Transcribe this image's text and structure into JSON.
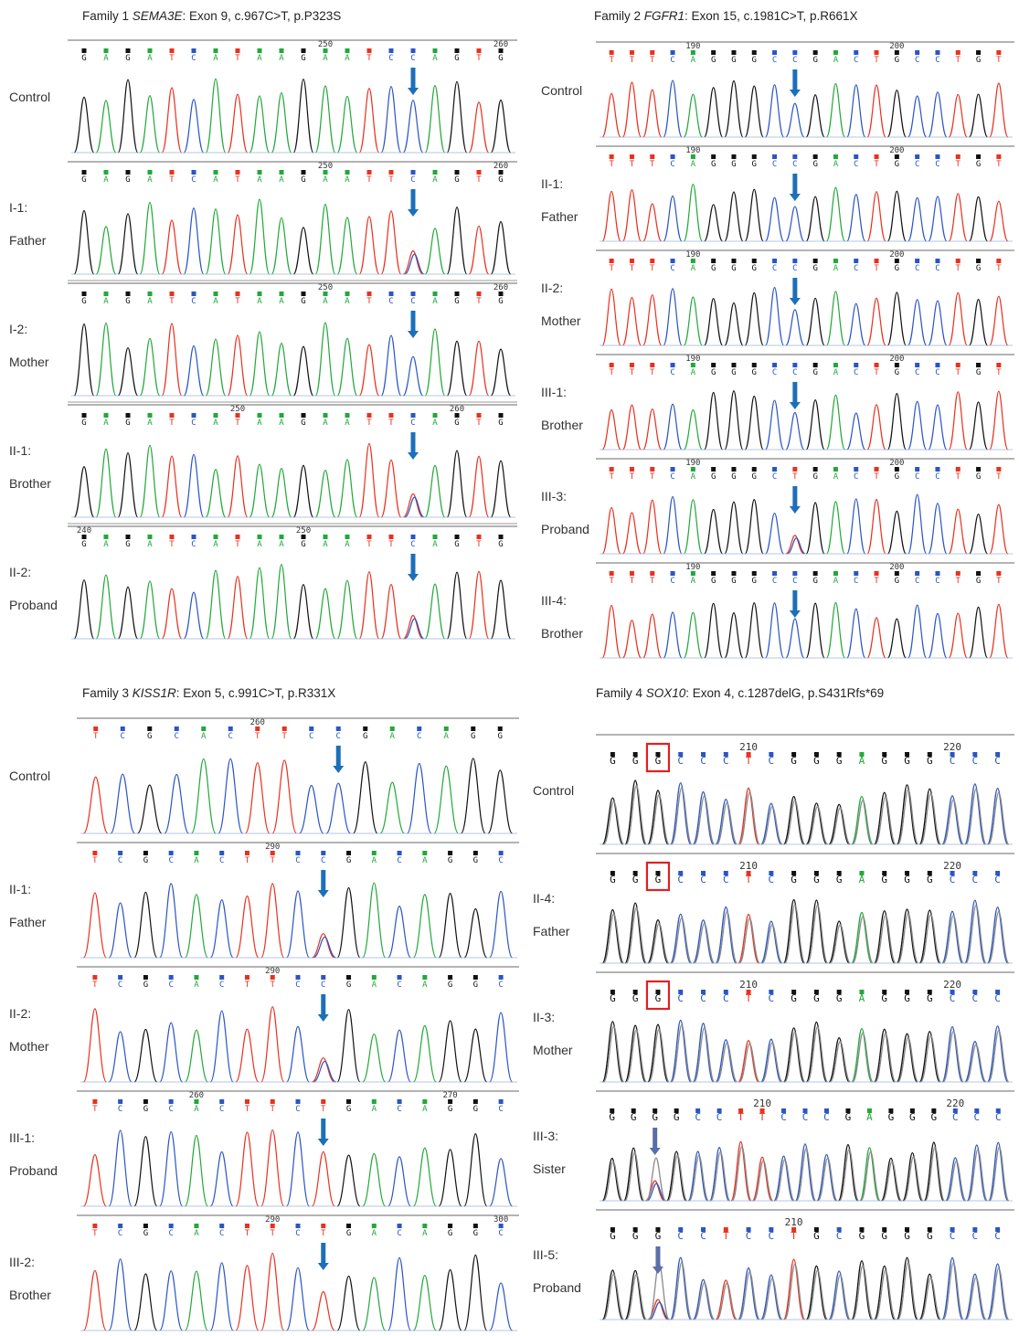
{
  "colors": {
    "A": "#22a83a",
    "C": "#2a55c4",
    "G": "#111111",
    "T": "#e8311f",
    "arrow": "#1d6fb8",
    "box": "#e02020",
    "axis": "#9a9a9a"
  },
  "panels": [
    {
      "id": "family1",
      "title_prefix": "Family 1 ",
      "gene": "SEMA3E",
      "title_suffix": ": Exon 9, c.967C>T, p.P323S",
      "tracks": [
        {
          "label1": "Control",
          "label2": "",
          "bases": "GAGATCATAAGAATCCAGTG",
          "pos_marks": [
            {
              "i": 11,
              "n": "250"
            },
            {
              "i": 19,
              "n": "260"
            }
          ],
          "arrow_at": 15,
          "het_at": null
        },
        {
          "label1": "I-1:",
          "label2": "Father",
          "bases": "GAGATCATAAGAATTCAGTG",
          "pos_marks": [
            {
              "i": 11,
              "n": "250"
            },
            {
              "i": 19,
              "n": "260"
            }
          ],
          "arrow_at": 15,
          "het_at": 15
        },
        {
          "label1": "I-2:",
          "label2": "Mother",
          "bases": "GAGATCATAAGAATCCAGTG",
          "pos_marks": [
            {
              "i": 11,
              "n": "250"
            },
            {
              "i": 19,
              "n": "260"
            }
          ],
          "arrow_at": 15,
          "het_at": null
        },
        {
          "label1": "II-1:",
          "label2": "Brother",
          "bases": "GAGATCATAAGAATTCAGTG",
          "pos_marks": [
            {
              "i": 7,
              "n": "250"
            },
            {
              "i": 17,
              "n": "260"
            }
          ],
          "arrow_at": 15,
          "het_at": 15
        },
        {
          "label1": "II-2:",
          "label2": "Proband",
          "bases": "GAGATCATAAGAATTCAGTG",
          "pos_marks": [
            {
              "i": 0,
              "n": "240"
            },
            {
              "i": 10,
              "n": "250"
            }
          ],
          "arrow_at": 15,
          "het_at": 15
        }
      ]
    },
    {
      "id": "family2",
      "title_prefix": "Family 2 ",
      "gene": "FGFR1",
      "title_suffix": ": Exon 15, c.1981C>T, p.R661X",
      "tracks": [
        {
          "label1": "Control",
          "label2": "",
          "bases": "TTTCAGGGCCGACTGCCTGT",
          "pos_marks": [
            {
              "i": 4,
              "n": "190"
            },
            {
              "i": 14,
              "n": "200"
            }
          ],
          "arrow_at": 9,
          "het_at": null
        },
        {
          "label1": "II-1:",
          "label2": "Father",
          "bases": "TTTCAGGGCCGACTGCCTGT",
          "pos_marks": [
            {
              "i": 4,
              "n": "190"
            },
            {
              "i": 14,
              "n": "200"
            }
          ],
          "arrow_at": 9,
          "het_at": null
        },
        {
          "label1": "II-2:",
          "label2": "Mother",
          "bases": "TTTCAGGGCCGACTGCCTGT",
          "pos_marks": [
            {
              "i": 4,
              "n": "190"
            },
            {
              "i": 14,
              "n": "200"
            }
          ],
          "arrow_at": 9,
          "het_at": null
        },
        {
          "label1": "III-1:",
          "label2": "Brother",
          "bases": "TTTCAGGGCCGACTGCCTGT",
          "pos_marks": [
            {
              "i": 4,
              "n": "190"
            },
            {
              "i": 14,
              "n": "200"
            }
          ],
          "arrow_at": 9,
          "het_at": null
        },
        {
          "label1": "III-3:",
          "label2": "Proband",
          "bases": "TTTCAGGGCTGACTGCCTGT",
          "pos_marks": [
            {
              "i": 4,
              "n": "190"
            },
            {
              "i": 14,
              "n": "200"
            }
          ],
          "arrow_at": 9,
          "het_at": 9
        },
        {
          "label1": "III-4:",
          "label2": "Brother",
          "bases": "TTTCAGGGCCGACTGCCTGT",
          "pos_marks": [
            {
              "i": 4,
              "n": "190"
            },
            {
              "i": 14,
              "n": "200"
            }
          ],
          "arrow_at": 9,
          "het_at": null
        }
      ]
    },
    {
      "id": "family3",
      "title_prefix": "Family 3 ",
      "gene": "KISS1R",
      "title_suffix": ": Exon 5, c.991C>T, p.R331X",
      "tracks": [
        {
          "label1": "Control",
          "label2": "",
          "bases": "TCGCACTTCCGACAGG",
          "pos_marks": [
            {
              "i": 6,
              "n": "260"
            }
          ],
          "arrow_at": 9,
          "het_at": null
        },
        {
          "label1": "II-1:",
          "label2": "Father",
          "bases": "TCGCACTTCCGACAGGC",
          "pos_marks": [
            {
              "i": 7,
              "n": "290"
            }
          ],
          "arrow_at": 9,
          "het_at": 9
        },
        {
          "label1": "II-2:",
          "label2": "Mother",
          "bases": "TCGCACTTCCGACAGGC",
          "pos_marks": [
            {
              "i": 7,
              "n": "290"
            }
          ],
          "arrow_at": 9,
          "het_at": 9
        },
        {
          "label1": "III-1:",
          "label2": "Proband",
          "bases": "TCGCACTTCTGACAGGC",
          "pos_marks": [
            {
              "i": 4,
              "n": "260"
            },
            {
              "i": 14,
              "n": "270"
            }
          ],
          "arrow_at": 9,
          "het_at": null
        },
        {
          "label1": "III-2:",
          "label2": "Brother",
          "bases": "TCGCACTTCTGACAGGC",
          "pos_marks": [
            {
              "i": 7,
              "n": "290"
            },
            {
              "i": 16,
              "n": "300"
            }
          ],
          "arrow_at": 9,
          "het_at": null
        }
      ]
    },
    {
      "id": "family4",
      "title_prefix": "Family 4 ",
      "gene": "SOX10",
      "title_suffix": ": Exon 4, c.1287delG, p.S431Rfs*69",
      "tracks": [
        {
          "label1": "Control",
          "label2": "",
          "bases": "GGGCCCTCGGGAGGGCCC",
          "pos_marks": [
            {
              "i": 6,
              "n": "210"
            },
            {
              "i": 15,
              "n": "220"
            }
          ],
          "box_at": 2,
          "arrow_at": null,
          "het_at": null
        },
        {
          "label1": "II-4:",
          "label2": "Father",
          "bases": "GGGCCCTCGGGAGGGCCC",
          "pos_marks": [
            {
              "i": 6,
              "n": "210"
            },
            {
              "i": 15,
              "n": "220"
            }
          ],
          "box_at": 2,
          "arrow_at": null,
          "het_at": null
        },
        {
          "label1": "II-3:",
          "label2": "Mother",
          "bases": "GGGCCCTCGGGAGGGCCC",
          "pos_marks": [
            {
              "i": 6,
              "n": "210"
            },
            {
              "i": 15,
              "n": "220"
            }
          ],
          "box_at": 2,
          "arrow_at": null,
          "het_at": null
        },
        {
          "label1": "III-3:",
          "label2": "Sister",
          "bases": "GGGGCCTTCCCGAGGGCCC",
          "pos_marks": [
            {
              "i": 7,
              "n": "210"
            },
            {
              "i": 16,
              "n": "220"
            }
          ],
          "box_at": null,
          "arrow_at": 2,
          "het_at": 2
        },
        {
          "label1": "III-5:",
          "label2": "Proband",
          "bases": "GGGCCTCCTGCGGGGCCC",
          "pos_marks": [
            {
              "i": 8,
              "n": "210"
            }
          ],
          "box_at": null,
          "arrow_at": 2,
          "het_at": 2
        }
      ]
    }
  ]
}
